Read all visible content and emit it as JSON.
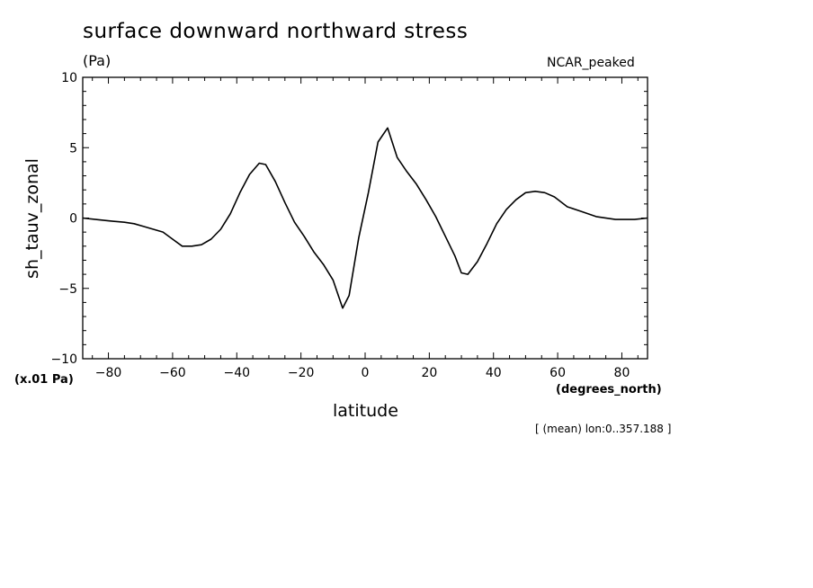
{
  "chart_data": {
    "type": "line",
    "title": "surface downward northward stress",
    "units": "(Pa)",
    "corner_label": "NCAR_peaked",
    "xlabel": "latitude",
    "x_units": "(degrees_north)",
    "ylabel": "sh_tauv_zonal",
    "y_scale_note": "(x.01 Pa)",
    "footnote": "[ (mean) lon:0..357.188 ]",
    "xlim": [
      -88,
      88
    ],
    "ylim": [
      -10,
      10
    ],
    "x_ticks": [
      -80,
      -60,
      -40,
      -20,
      0,
      20,
      40,
      60,
      80
    ],
    "y_ticks": [
      -10,
      -5,
      0,
      5,
      10
    ],
    "grid": false,
    "series": [
      {
        "x": [
          -88,
          -84,
          -80,
          -75,
          -72,
          -69,
          -66,
          -63,
          -60,
          -57,
          -54,
          -51,
          -48,
          -45,
          -42,
          -39,
          -36,
          -33,
          -31,
          -28,
          -25,
          -22,
          -19,
          -16,
          -13,
          -10,
          -7,
          -5,
          -2,
          1,
          4,
          7,
          10,
          13,
          16,
          19,
          22,
          25,
          28,
          30,
          32,
          35,
          38,
          41,
          44,
          47,
          50,
          53,
          56,
          59,
          63,
          67,
          72,
          78,
          84,
          88
        ],
        "y": [
          0,
          -0.1,
          -0.2,
          -0.3,
          -0.4,
          -0.6,
          -0.8,
          -1.0,
          -1.5,
          -2.0,
          -2.0,
          -1.9,
          -1.5,
          -0.8,
          0.3,
          1.8,
          3.1,
          3.9,
          3.8,
          2.6,
          1.1,
          -0.3,
          -1.3,
          -2.4,
          -3.3,
          -4.4,
          -6.4,
          -5.5,
          -1.4,
          1.8,
          5.4,
          6.4,
          4.3,
          3.3,
          2.4,
          1.3,
          0.1,
          -1.3,
          -2.7,
          -3.9,
          -4.0,
          -3.1,
          -1.8,
          -0.4,
          0.6,
          1.3,
          1.8,
          1.9,
          1.8,
          1.5,
          0.8,
          0.5,
          0.1,
          -0.1,
          -0.1,
          0
        ]
      }
    ]
  }
}
